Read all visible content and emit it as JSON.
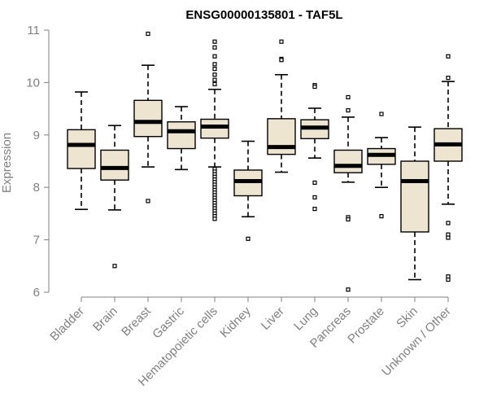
{
  "chart_data": {
    "type": "box",
    "title": "ENSG00000135801 - TAF5L",
    "xlabel": "",
    "ylabel": "Expression",
    "ylim": [
      6,
      11
    ],
    "yticks": [
      6,
      7,
      8,
      9,
      10,
      11
    ],
    "categories": [
      "Bladder",
      "Brain",
      "Breast",
      "Gastric",
      "Hematopoietic cells",
      "Kidney",
      "Liver",
      "Lung",
      "Pancreas",
      "Prostate",
      "Skin",
      "Unknown / Other"
    ],
    "boxes": [
      {
        "category": "Bladder",
        "whisker_low": 7.58,
        "q1": 8.36,
        "median": 8.81,
        "q3": 9.1,
        "whisker_high": 9.82,
        "outliers": []
      },
      {
        "category": "Brain",
        "whisker_low": 7.57,
        "q1": 8.14,
        "median": 8.37,
        "q3": 8.71,
        "whisker_high": 9.18,
        "outliers": [
          6.5
        ]
      },
      {
        "category": "Breast",
        "whisker_low": 8.39,
        "q1": 8.97,
        "median": 9.25,
        "q3": 9.66,
        "whisker_high": 10.33,
        "outliers": [
          10.93,
          7.74
        ]
      },
      {
        "category": "Gastric",
        "whisker_low": 8.34,
        "q1": 8.74,
        "median": 9.07,
        "q3": 9.25,
        "whisker_high": 9.54,
        "outliers": []
      },
      {
        "category": "Hematopoietic cells",
        "whisker_low": 8.39,
        "q1": 8.94,
        "median": 9.16,
        "q3": 9.3,
        "whisker_high": 9.87,
        "outliers": [
          10.78,
          10.67,
          10.5,
          10.35,
          10.26,
          10.15,
          10.05,
          9.97,
          8.35,
          8.3,
          8.25,
          8.2,
          8.15,
          8.1,
          8.05,
          8.0,
          7.95,
          7.9,
          7.85,
          7.8,
          7.75,
          7.7,
          7.65,
          7.6,
          7.55,
          7.5,
          7.45,
          7.4
        ]
      },
      {
        "category": "Kidney",
        "whisker_low": 7.44,
        "q1": 7.84,
        "median": 8.12,
        "q3": 8.33,
        "whisker_high": 8.88,
        "outliers": [
          7.02
        ]
      },
      {
        "category": "Liver",
        "whisker_low": 8.29,
        "q1": 8.63,
        "median": 8.77,
        "q3": 9.31,
        "whisker_high": 10.15,
        "outliers": [
          10.78,
          10.45,
          10.43
        ]
      },
      {
        "category": "Lung",
        "whisker_low": 8.56,
        "q1": 8.93,
        "median": 9.14,
        "q3": 9.29,
        "whisker_high": 9.51,
        "outliers": [
          9.95,
          9.92,
          8.09,
          7.81,
          7.59
        ]
      },
      {
        "category": "Pancreas",
        "whisker_low": 8.1,
        "q1": 8.28,
        "median": 8.41,
        "q3": 8.71,
        "whisker_high": 9.34,
        "outliers": [
          9.72,
          9.47,
          7.43,
          7.39,
          6.05
        ]
      },
      {
        "category": "Prostate",
        "whisker_low": 8.0,
        "q1": 8.44,
        "median": 8.62,
        "q3": 8.74,
        "whisker_high": 8.95,
        "outliers": [
          9.4,
          7.45
        ]
      },
      {
        "category": "Skin",
        "whisker_low": 6.24,
        "q1": 7.15,
        "median": 8.12,
        "q3": 8.5,
        "whisker_high": 9.15,
        "outliers": []
      },
      {
        "category": "Unknown / Other",
        "whisker_low": 7.68,
        "q1": 8.5,
        "median": 8.82,
        "q3": 9.12,
        "whisker_high": 10.02,
        "outliers": [
          10.5,
          10.09,
          7.32,
          7.1,
          7.04,
          6.3,
          6.24
        ]
      }
    ],
    "colors": {
      "box_fill": "#ede5cf",
      "stroke": "#000000",
      "axis": "#808080",
      "title": "#000000"
    },
    "grid": false,
    "legend": "none"
  }
}
